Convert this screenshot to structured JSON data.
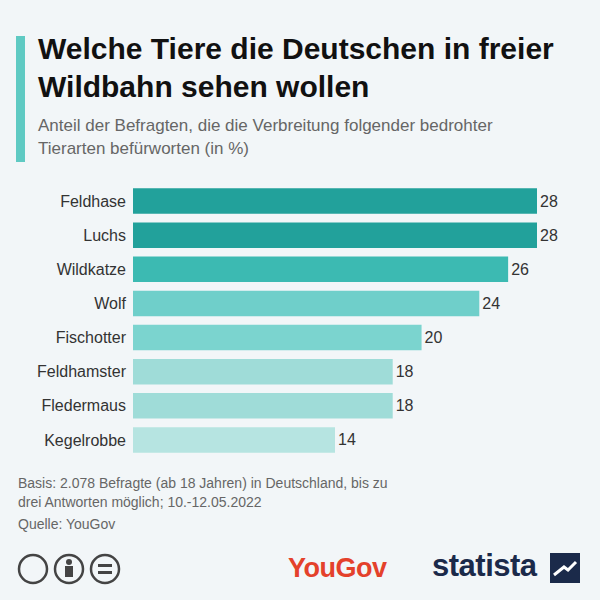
{
  "chart_data": {
    "type": "bar",
    "title": "Welche Tiere die Deutschen in freier Wildbahn sehen wollen",
    "subtitle": "Anteil der Befragten, die die Verbreitung folgender bedrohter Tierarten befürworten (in %)",
    "categories": [
      "Feldhase",
      "Luchs",
      "Wildkatze",
      "Wolf",
      "Fischotter",
      "Feldhamster",
      "Fledermaus",
      "Kegelrobbe"
    ],
    "values": [
      28,
      28,
      26,
      24,
      20,
      18,
      18,
      14
    ],
    "colors": [
      "#22a19b",
      "#22a19b",
      "#3cbab2",
      "#6fcfca",
      "#7bd4cf",
      "#9fdcd8",
      "#9fdcd8",
      "#b6e4e1"
    ],
    "orientation": "horizontal",
    "data_labels": true,
    "tick_labels": "y",
    "grid": false,
    "xlim": [
      0,
      28
    ],
    "note": "Basis: 2.078 Befragte (ab 18 Jahren) in Deutschland, bis zu drei Antworten möglich; 10.-12.05.2022",
    "source": "Quelle: YouGov",
    "logos": [
      "YouGov",
      "statista"
    ]
  }
}
